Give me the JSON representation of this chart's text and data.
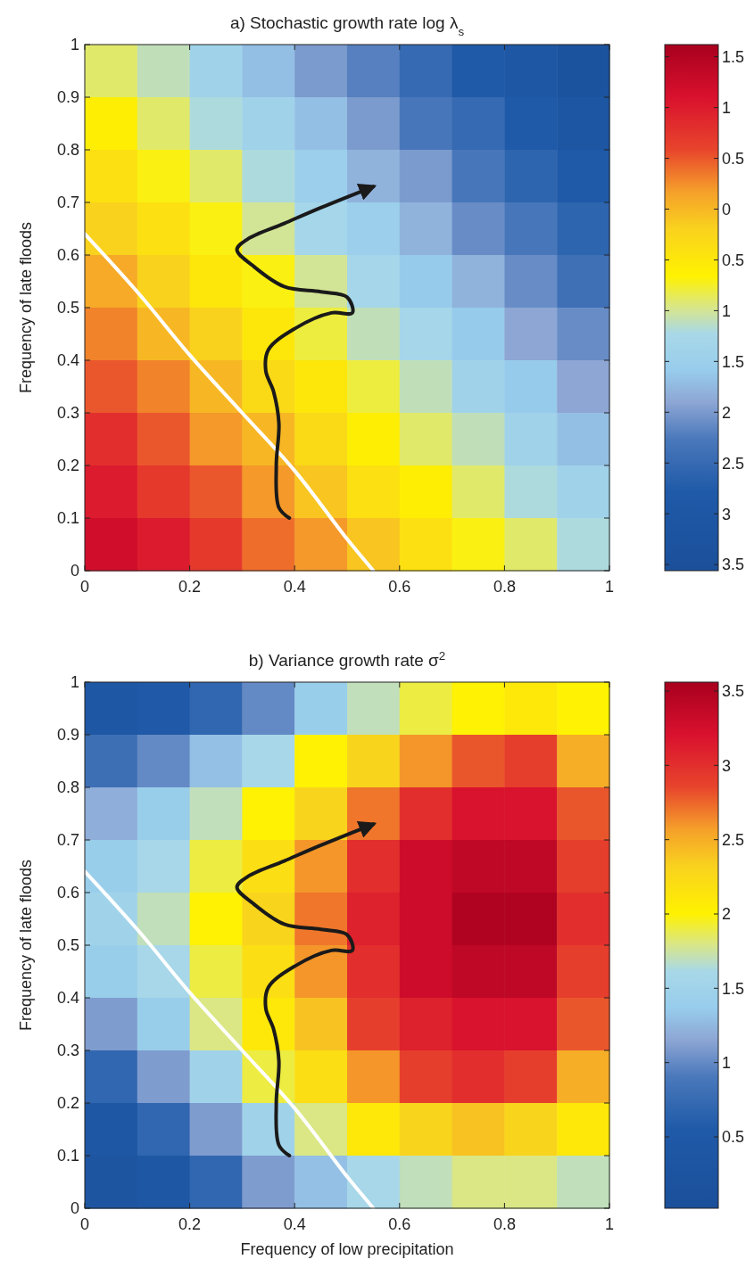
{
  "chart_data": [
    {
      "type": "heatmap",
      "title": "a) Stochastic growth rate log λ$_{s}$",
      "ylabel": "Frequency of late floods",
      "xlim": [
        0,
        1
      ],
      "xticks": [
        0,
        0.2,
        0.4,
        0.6,
        0.8,
        1
      ],
      "ylim": [
        0,
        1
      ],
      "yticks": [
        0,
        0.1,
        0.2,
        0.3,
        0.4,
        0.5,
        0.6,
        0.7,
        0.8,
        0.9,
        1
      ],
      "clim": [
        -3.56,
        1.62
      ],
      "cticks": [
        {
          "value": 1.5,
          "label": "1.5"
        },
        {
          "value": 1,
          "label": "1"
        },
        {
          "value": 0.5,
          "label": "0.5"
        },
        {
          "value": 0,
          "label": "0"
        },
        {
          "value": -0.5,
          "label": "0.5"
        },
        {
          "value": -1,
          "label": "1"
        },
        {
          "value": -1.5,
          "label": "1.5"
        },
        {
          "value": -2,
          "label": "2"
        },
        {
          "value": -2.5,
          "label": "2.5"
        },
        {
          "value": -3,
          "label": "3"
        },
        {
          "value": -3.5,
          "label": "3.5"
        }
      ],
      "cells": [
        [
          -0.9,
          -1.1,
          -1.4,
          -1.7,
          -2.0,
          -2.2,
          -2.5,
          -2.8,
          -3.0,
          -3.3
        ],
        [
          -0.6,
          -0.9,
          -1.2,
          -1.4,
          -1.7,
          -2.0,
          -2.3,
          -2.5,
          -2.8,
          -3.1
        ],
        [
          -0.4,
          -0.7,
          -0.9,
          -1.2,
          -1.5,
          -1.8,
          -2.0,
          -2.3,
          -2.6,
          -2.8
        ],
        [
          -0.2,
          -0.4,
          -0.7,
          -1.0,
          -1.3,
          -1.5,
          -1.8,
          -2.1,
          -2.3,
          -2.6
        ],
        [
          0.1,
          -0.2,
          -0.5,
          -0.7,
          -1.0,
          -1.3,
          -1.6,
          -1.8,
          -2.1,
          -2.4
        ],
        [
          0.3,
          0.0,
          -0.2,
          -0.5,
          -0.8,
          -1.1,
          -1.3,
          -1.6,
          -1.9,
          -2.1
        ],
        [
          0.5,
          0.3,
          0.0,
          -0.3,
          -0.5,
          -0.8,
          -1.1,
          -1.4,
          -1.6,
          -1.9
        ],
        [
          0.8,
          0.5,
          0.2,
          0.0,
          -0.3,
          -0.6,
          -0.9,
          -1.1,
          -1.4,
          -1.7
        ],
        [
          1.0,
          0.7,
          0.5,
          0.2,
          -0.1,
          -0.4,
          -0.6,
          -0.9,
          -1.2,
          -1.4
        ],
        [
          1.2,
          1.0,
          0.7,
          0.4,
          0.2,
          -0.1,
          -0.4,
          -0.7,
          -0.9,
          -1.2
        ]
      ],
      "series": [
        {
          "type": "line",
          "color": "#ffffff",
          "x": [
            0,
            0.1,
            0.2,
            0.3,
            0.4,
            0.5,
            0.55
          ],
          "values": [
            0.64,
            0.53,
            0.41,
            0.3,
            0.19,
            0.06,
            0.0
          ]
        },
        {
          "type": "line",
          "color": "#1a1a1a",
          "x": [
            0.39,
            0.37,
            0.365,
            0.37,
            0.36,
            0.345,
            0.35,
            0.4,
            0.47,
            0.51,
            0.5,
            0.45,
            0.38,
            0.32,
            0.29,
            0.31,
            0.38,
            0.45,
            0.55
          ],
          "values": [
            0.1,
            0.12,
            0.2,
            0.28,
            0.34,
            0.38,
            0.42,
            0.46,
            0.49,
            0.49,
            0.52,
            0.53,
            0.54,
            0.58,
            0.61,
            0.63,
            0.66,
            0.69,
            0.73
          ]
        }
      ]
    },
    {
      "type": "heatmap",
      "title": "b) Variance growth rate σ$^{2}$",
      "xlabel": "Frequency of low precipitation",
      "ylabel": "Frequency of late floods",
      "xlim": [
        0,
        1
      ],
      "xticks": [
        0,
        0.2,
        0.4,
        0.6,
        0.8,
        1
      ],
      "ylim": [
        0,
        1
      ],
      "yticks": [
        0,
        0.1,
        0.2,
        0.3,
        0.4,
        0.5,
        0.6,
        0.7,
        0.8,
        0.9,
        1
      ],
      "clim": [
        0.02,
        3.56
      ],
      "cticks": [
        3.5,
        3,
        2.5,
        2,
        1.5,
        1,
        0.5
      ],
      "cells": [
        [
          0.4,
          0.5,
          0.7,
          1.0,
          1.4,
          1.7,
          1.9,
          2.0,
          2.1,
          2.0
        ],
        [
          0.8,
          1.0,
          1.3,
          1.6,
          2.0,
          2.3,
          2.6,
          2.8,
          2.9,
          2.5
        ],
        [
          1.2,
          1.4,
          1.7,
          2.0,
          2.3,
          2.7,
          3.0,
          3.2,
          3.2,
          2.8
        ],
        [
          1.4,
          1.6,
          1.9,
          2.2,
          2.6,
          3.0,
          3.3,
          3.4,
          3.4,
          2.9
        ],
        [
          1.5,
          1.7,
          2.0,
          2.3,
          2.7,
          3.1,
          3.3,
          3.5,
          3.5,
          3.0
        ],
        [
          1.4,
          1.6,
          1.9,
          2.2,
          2.6,
          3.0,
          3.3,
          3.4,
          3.4,
          2.9
        ],
        [
          1.1,
          1.4,
          1.8,
          2.1,
          2.4,
          2.9,
          3.1,
          3.2,
          3.2,
          2.8
        ],
        [
          0.7,
          1.1,
          1.5,
          1.9,
          2.2,
          2.6,
          2.9,
          3.0,
          2.9,
          2.5
        ],
        [
          0.4,
          0.7,
          1.1,
          1.5,
          1.8,
          2.1,
          2.3,
          2.4,
          2.3,
          2.1
        ],
        [
          0.3,
          0.4,
          0.7,
          1.1,
          1.3,
          1.6,
          1.7,
          1.8,
          1.8,
          1.7
        ]
      ],
      "series": [
        {
          "type": "line",
          "color": "#ffffff",
          "x": [
            0,
            0.1,
            0.2,
            0.3,
            0.4,
            0.5,
            0.55
          ],
          "values": [
            0.64,
            0.53,
            0.41,
            0.3,
            0.19,
            0.06,
            0.0
          ]
        },
        {
          "type": "line",
          "color": "#1a1a1a",
          "x": [
            0.39,
            0.37,
            0.365,
            0.37,
            0.36,
            0.345,
            0.35,
            0.4,
            0.47,
            0.51,
            0.5,
            0.45,
            0.38,
            0.32,
            0.29,
            0.31,
            0.38,
            0.45,
            0.55
          ],
          "values": [
            0.1,
            0.12,
            0.2,
            0.28,
            0.34,
            0.38,
            0.42,
            0.46,
            0.49,
            0.49,
            0.52,
            0.53,
            0.54,
            0.58,
            0.61,
            0.63,
            0.66,
            0.69,
            0.73
          ]
        }
      ]
    }
  ]
}
